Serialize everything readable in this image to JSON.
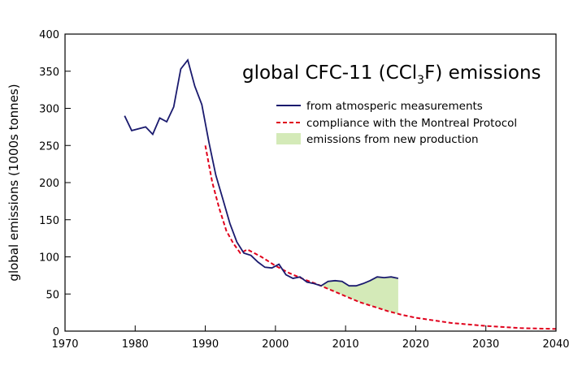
{
  "chart_data": {
    "type": "line",
    "title": {
      "prefix": "global CFC-11 (CCl",
      "sub": "3",
      "suffix": "F) emissions"
    },
    "xlabel": "",
    "ylabel": "global emissions (1000s tonnes)",
    "xlim": [
      1970,
      2040
    ],
    "ylim": [
      0,
      400
    ],
    "xticks": [
      "1970",
      "1980",
      "1990",
      "2000",
      "2010",
      "2020",
      "2030",
      "2040"
    ],
    "yticks": [
      "0",
      "50",
      "100",
      "150",
      "200",
      "250",
      "300",
      "350",
      "400"
    ],
    "legend_position": "top-right",
    "colors": {
      "measured": "#1a1a6e",
      "compliance": "#e0001b",
      "fill": "#d4eab8"
    },
    "series": [
      {
        "name": "from atmosperic measurements",
        "style": "solid",
        "x": [
          1978.5,
          1979.5,
          1981.5,
          1982.5,
          1983.5,
          1984.5,
          1985.5,
          1986.5,
          1987.5,
          1988.5,
          1989.5,
          1990.5,
          1991.5,
          1992.5,
          1993.5,
          1994.5,
          1995.5,
          1996.5,
          1997.5,
          1998.5,
          1999.5,
          2000.5,
          2001.5,
          2002.5,
          2003.5,
          2004.5,
          2005.5,
          2006.5,
          2007.5,
          2008.5,
          2009.5,
          2010.5,
          2011.5,
          2012.5,
          2013.5,
          2014.5,
          2015.5,
          2016.5,
          2017.5
        ],
        "y": [
          290,
          270,
          275,
          265,
          287,
          282,
          302,
          353,
          365,
          330,
          305,
          255,
          210,
          178,
          145,
          120,
          105,
          102,
          93,
          86,
          85,
          90,
          76,
          71,
          73,
          66,
          64,
          61,
          67,
          68,
          67,
          61,
          61,
          64,
          68,
          73,
          72,
          73,
          71
        ]
      },
      {
        "name": "compliance with the Montreal Protocol",
        "style": "dashed",
        "x": [
          1990,
          1991,
          1992,
          1993,
          1994,
          1995,
          1996,
          1998,
          2000,
          2002,
          2004,
          2006,
          2008,
          2010,
          2012,
          2014,
          2016,
          2018,
          2020,
          2025,
          2030,
          2035,
          2040
        ],
        "y": [
          250,
          200,
          165,
          135,
          118,
          105,
          110,
          100,
          88,
          78,
          70,
          63,
          55,
          47,
          39,
          33,
          27,
          22,
          18,
          11,
          7,
          4,
          3
        ]
      },
      {
        "name": "emissions from new production",
        "style": "fill"
      }
    ]
  }
}
